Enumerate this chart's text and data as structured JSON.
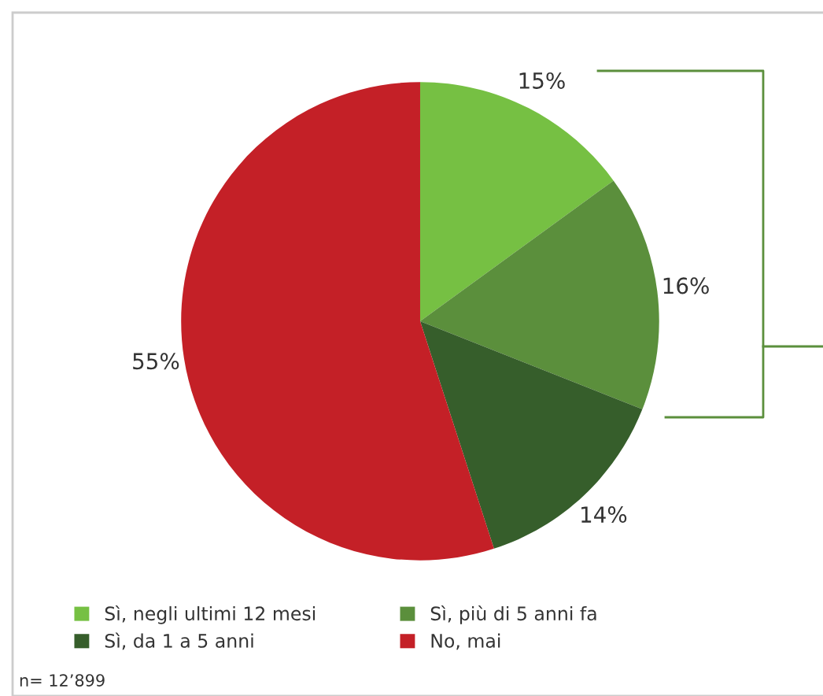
{
  "chart_data": {
    "type": "pie",
    "categories": [
      "Sì, negli ultimi 12 mesi",
      "Sì, più di 5 anni fa",
      "Sì, da 1 a 5 anni",
      "No, mai"
    ],
    "values": [
      15,
      16,
      14,
      55
    ],
    "colors": [
      "#76c043",
      "#5b8f3c",
      "#365e2b",
      "#c42027"
    ],
    "value_labels": [
      "15%",
      "16%",
      "14%",
      "55%"
    ],
    "legend": "bottom",
    "annotations": [
      "n= 12’899"
    ]
  }
}
